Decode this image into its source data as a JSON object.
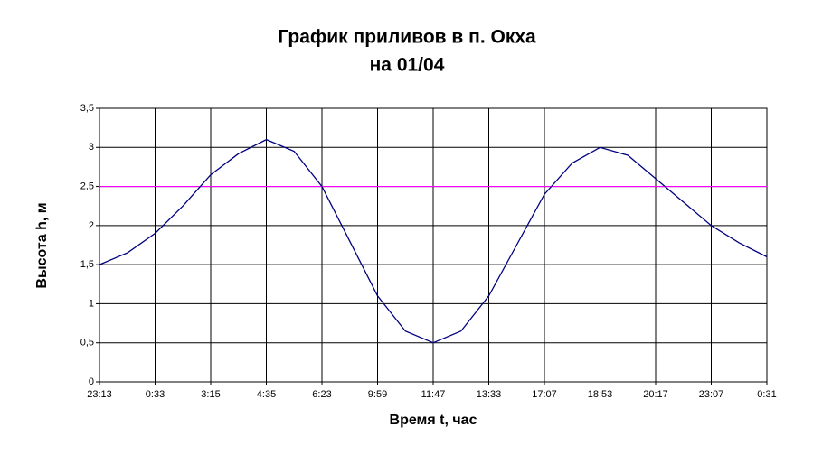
{
  "chart_data": {
    "type": "line",
    "title": "График приливов в п. Окха",
    "subtitle": "на 01/04",
    "x_label": "Время t, час",
    "y_label": "Высота h, м",
    "categories": [
      "23:13",
      null,
      "0:33",
      null,
      "3:15",
      null,
      "4:35",
      null,
      "6:23",
      null,
      "9:59",
      null,
      "11:47",
      null,
      "13:33",
      null,
      "17:07",
      null,
      "18:53",
      null,
      "20:17",
      null,
      "23:07",
      null,
      "0:31"
    ],
    "series": [
      {
        "name": "Высота",
        "color": "#000080",
        "values": [
          1.5,
          1.65,
          1.9,
          2.25,
          2.65,
          2.92,
          3.1,
          2.95,
          2.5,
          1.8,
          1.1,
          0.65,
          0.5,
          0.65,
          1.1,
          1.75,
          2.4,
          2.8,
          3.0,
          2.9,
          2.6,
          2.3,
          2.0,
          1.78,
          1.6
        ]
      }
    ],
    "reference_line": {
      "value": 2.5,
      "color": "#ff00ff"
    },
    "ylim": [
      0,
      3.5
    ],
    "yticks": [
      0,
      {
        "value": 0.5,
        "label": "0,5"
      },
      1,
      {
        "value": 1.5,
        "label": "1,5"
      },
      2,
      {
        "value": 2.5,
        "label": "2,5"
      },
      3,
      {
        "value": 3.5,
        "label": "3,5"
      }
    ],
    "grid": true
  }
}
